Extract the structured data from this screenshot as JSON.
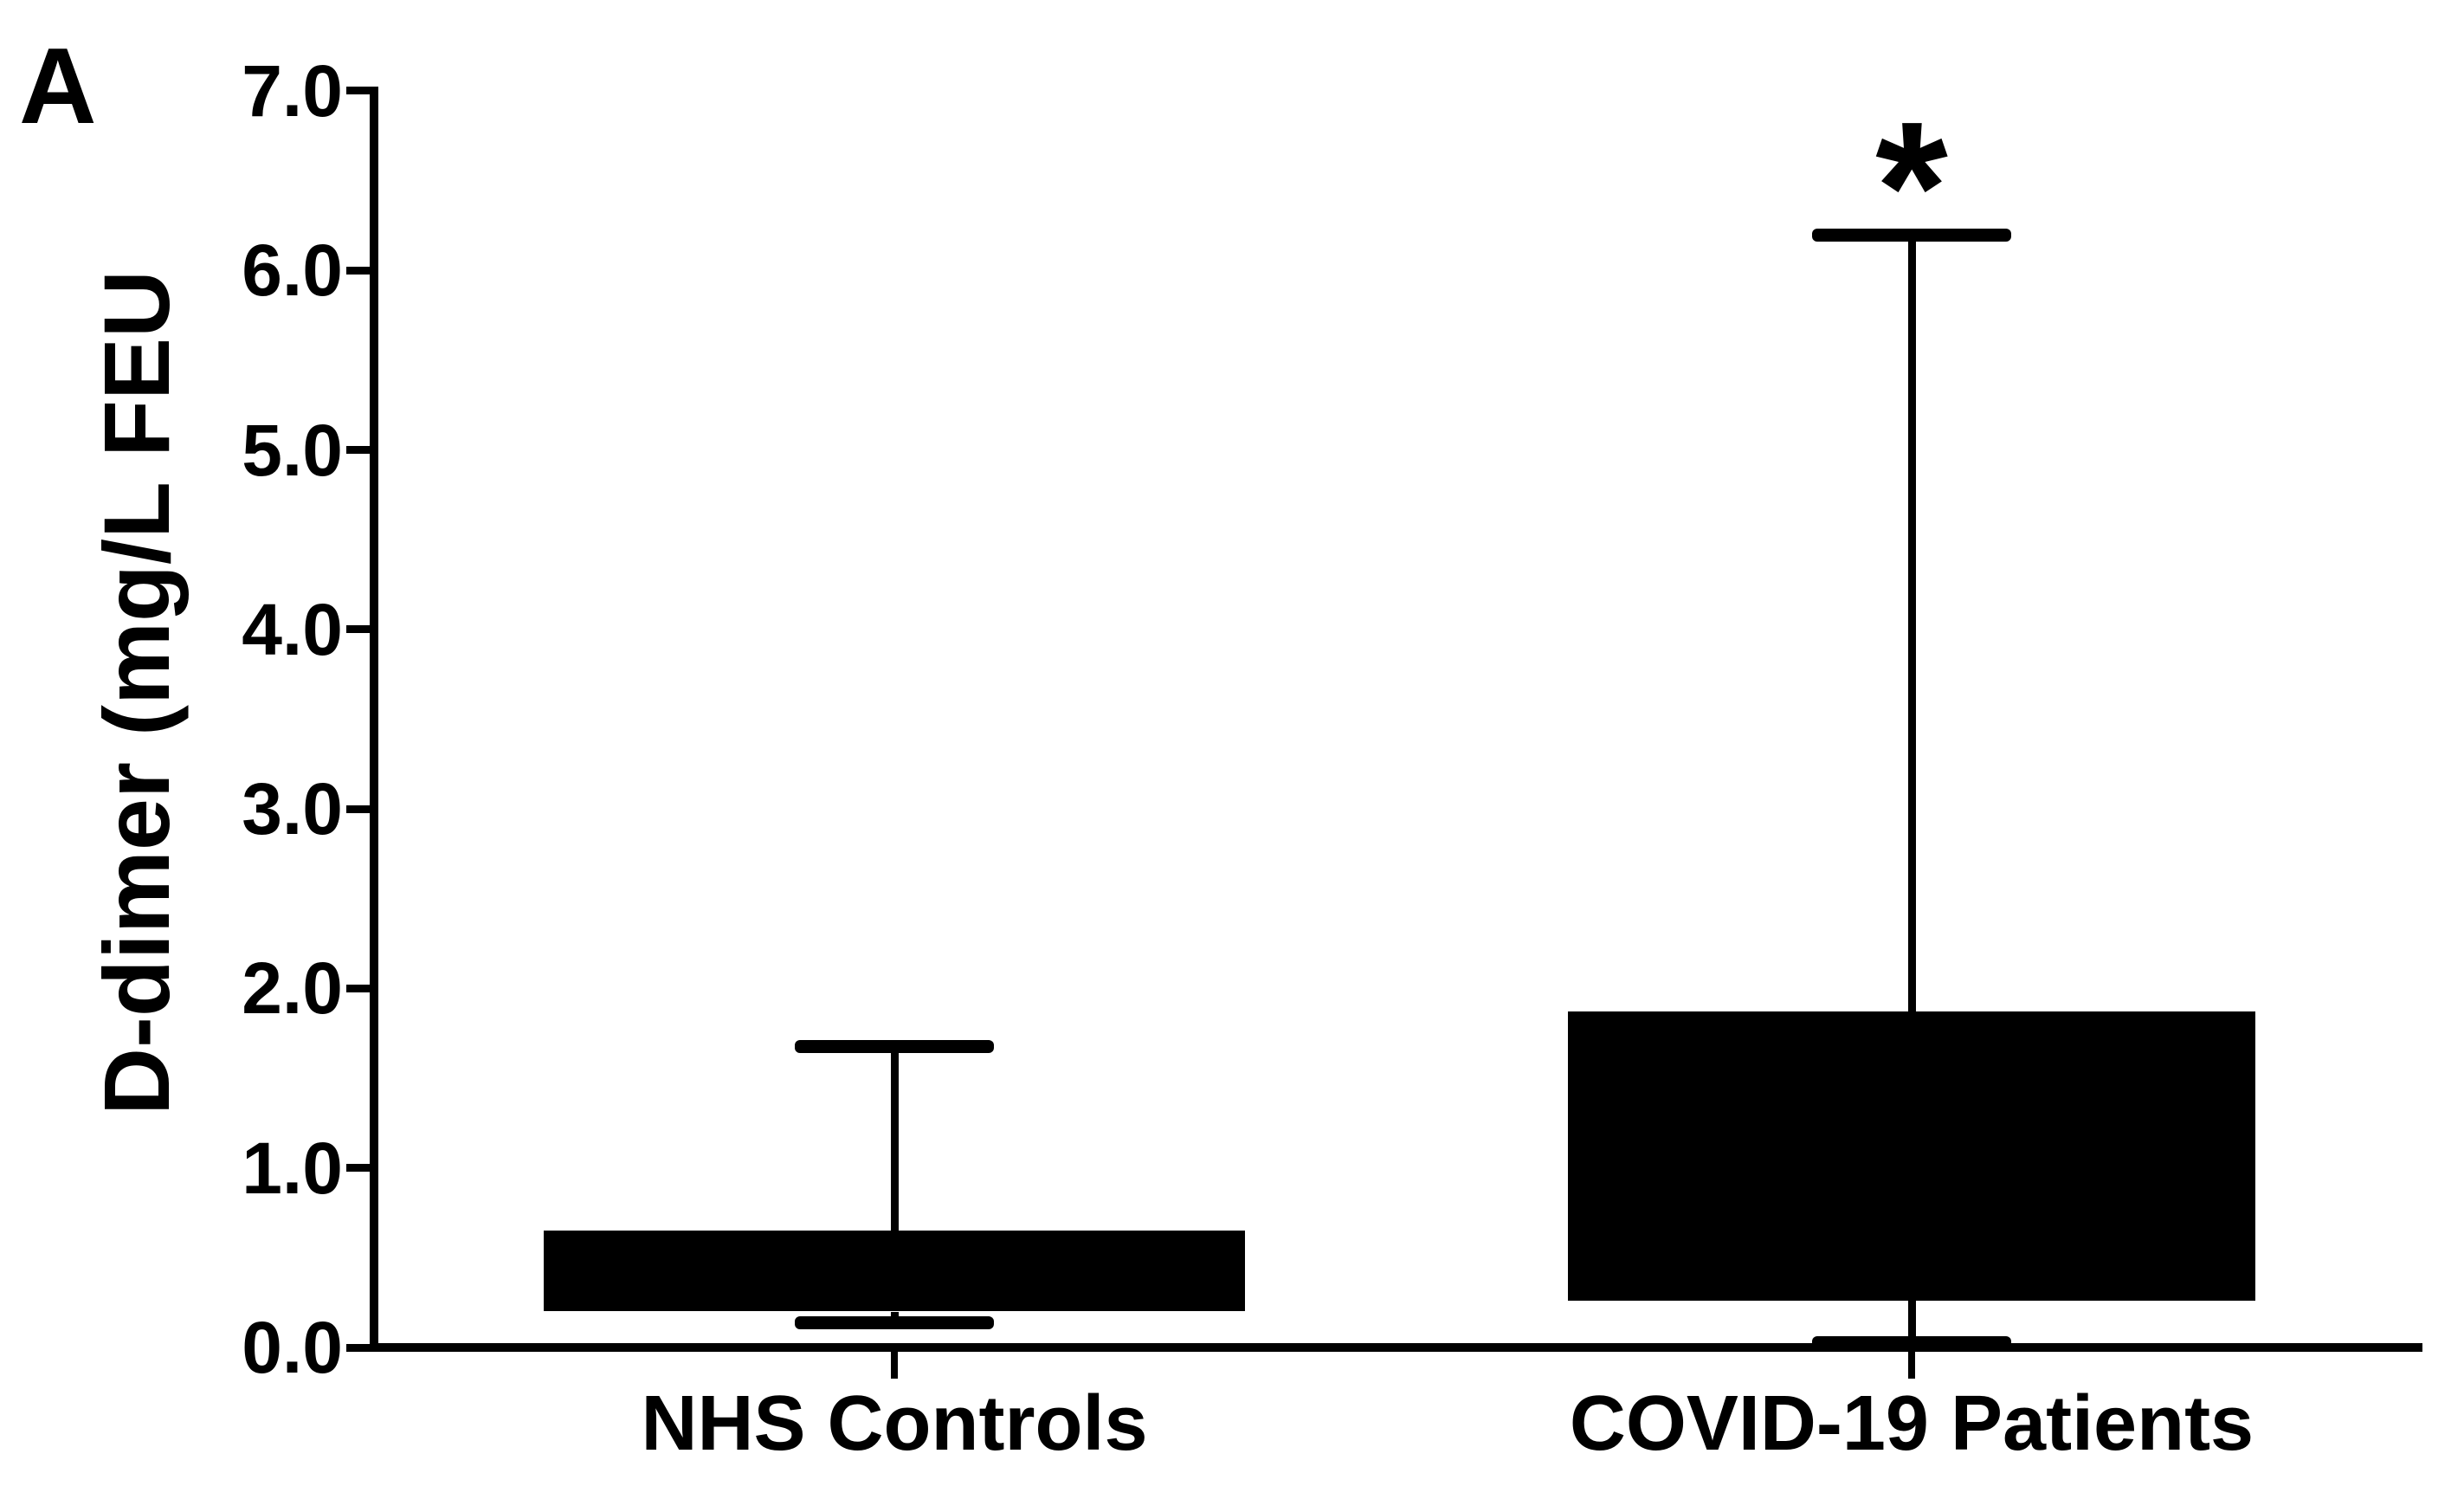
{
  "figure": {
    "panel_label": "A",
    "colors": {
      "ink": "#000000",
      "background": "#ffffff"
    }
  },
  "chart_data": {
    "type": "boxplot",
    "title": "",
    "xlabel": "",
    "ylabel": "D-dimer (mg/L FEU",
    "categories": [
      "NHS Controls",
      "COVID-19 Patients"
    ],
    "y_axis": {
      "min": 0.0,
      "max": 7.0,
      "tick_interval": 1.0,
      "tick_labels": [
        "0.0",
        "1.0",
        "2.0",
        "3.0",
        "4.0",
        "5.0",
        "6.0",
        "7.0"
      ]
    },
    "series": [
      {
        "name": "NHS Controls",
        "whisker_low": 0.14,
        "q1": 0.2,
        "q3": 0.65,
        "whisker_high": 1.68,
        "median_visible": false,
        "fill": "#000000",
        "annotation": ""
      },
      {
        "name": "COVID-19 Patients",
        "whisker_low": 0.03,
        "q1": 0.26,
        "q3": 1.87,
        "whisker_high": 6.2,
        "median_visible": false,
        "fill": "#000000",
        "annotation": "*"
      }
    ],
    "legend": null,
    "grid": false
  }
}
